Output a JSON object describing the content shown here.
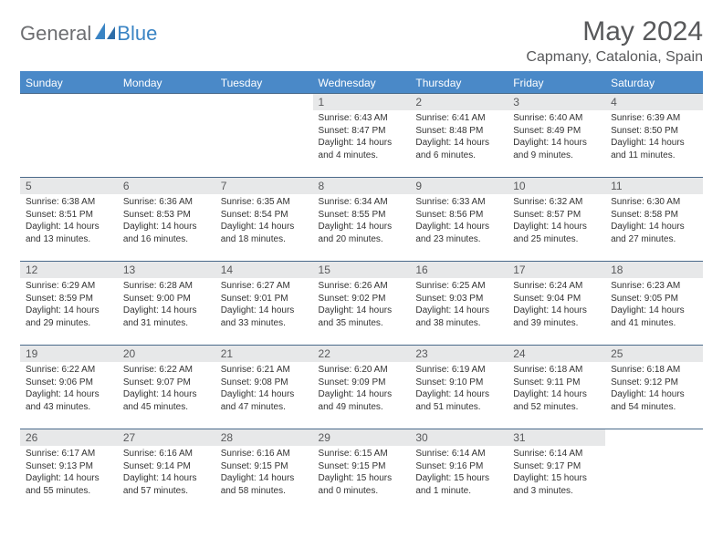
{
  "logo": {
    "general": "General",
    "blue": "Blue"
  },
  "title": "May 2024",
  "location": "Capmany, Catalonia, Spain",
  "colors": {
    "header_bg": "#4a89c8",
    "header_text": "#ffffff",
    "daynum_bg": "#e7e8e9",
    "text_gray": "#58595b",
    "logo_gray": "#6d6e71",
    "logo_blue": "#3a84c4",
    "row_border": "#4a6a8a"
  },
  "weekdays": [
    "Sunday",
    "Monday",
    "Tuesday",
    "Wednesday",
    "Thursday",
    "Friday",
    "Saturday"
  ],
  "weeks": [
    [
      {
        "n": "",
        "sr": "",
        "ss": "",
        "dl": ""
      },
      {
        "n": "",
        "sr": "",
        "ss": "",
        "dl": ""
      },
      {
        "n": "",
        "sr": "",
        "ss": "",
        "dl": ""
      },
      {
        "n": "1",
        "sr": "Sunrise: 6:43 AM",
        "ss": "Sunset: 8:47 PM",
        "dl": "Daylight: 14 hours and 4 minutes."
      },
      {
        "n": "2",
        "sr": "Sunrise: 6:41 AM",
        "ss": "Sunset: 8:48 PM",
        "dl": "Daylight: 14 hours and 6 minutes."
      },
      {
        "n": "3",
        "sr": "Sunrise: 6:40 AM",
        "ss": "Sunset: 8:49 PM",
        "dl": "Daylight: 14 hours and 9 minutes."
      },
      {
        "n": "4",
        "sr": "Sunrise: 6:39 AM",
        "ss": "Sunset: 8:50 PM",
        "dl": "Daylight: 14 hours and 11 minutes."
      }
    ],
    [
      {
        "n": "5",
        "sr": "Sunrise: 6:38 AM",
        "ss": "Sunset: 8:51 PM",
        "dl": "Daylight: 14 hours and 13 minutes."
      },
      {
        "n": "6",
        "sr": "Sunrise: 6:36 AM",
        "ss": "Sunset: 8:53 PM",
        "dl": "Daylight: 14 hours and 16 minutes."
      },
      {
        "n": "7",
        "sr": "Sunrise: 6:35 AM",
        "ss": "Sunset: 8:54 PM",
        "dl": "Daylight: 14 hours and 18 minutes."
      },
      {
        "n": "8",
        "sr": "Sunrise: 6:34 AM",
        "ss": "Sunset: 8:55 PM",
        "dl": "Daylight: 14 hours and 20 minutes."
      },
      {
        "n": "9",
        "sr": "Sunrise: 6:33 AM",
        "ss": "Sunset: 8:56 PM",
        "dl": "Daylight: 14 hours and 23 minutes."
      },
      {
        "n": "10",
        "sr": "Sunrise: 6:32 AM",
        "ss": "Sunset: 8:57 PM",
        "dl": "Daylight: 14 hours and 25 minutes."
      },
      {
        "n": "11",
        "sr": "Sunrise: 6:30 AM",
        "ss": "Sunset: 8:58 PM",
        "dl": "Daylight: 14 hours and 27 minutes."
      }
    ],
    [
      {
        "n": "12",
        "sr": "Sunrise: 6:29 AM",
        "ss": "Sunset: 8:59 PM",
        "dl": "Daylight: 14 hours and 29 minutes."
      },
      {
        "n": "13",
        "sr": "Sunrise: 6:28 AM",
        "ss": "Sunset: 9:00 PM",
        "dl": "Daylight: 14 hours and 31 minutes."
      },
      {
        "n": "14",
        "sr": "Sunrise: 6:27 AM",
        "ss": "Sunset: 9:01 PM",
        "dl": "Daylight: 14 hours and 33 minutes."
      },
      {
        "n": "15",
        "sr": "Sunrise: 6:26 AM",
        "ss": "Sunset: 9:02 PM",
        "dl": "Daylight: 14 hours and 35 minutes."
      },
      {
        "n": "16",
        "sr": "Sunrise: 6:25 AM",
        "ss": "Sunset: 9:03 PM",
        "dl": "Daylight: 14 hours and 38 minutes."
      },
      {
        "n": "17",
        "sr": "Sunrise: 6:24 AM",
        "ss": "Sunset: 9:04 PM",
        "dl": "Daylight: 14 hours and 39 minutes."
      },
      {
        "n": "18",
        "sr": "Sunrise: 6:23 AM",
        "ss": "Sunset: 9:05 PM",
        "dl": "Daylight: 14 hours and 41 minutes."
      }
    ],
    [
      {
        "n": "19",
        "sr": "Sunrise: 6:22 AM",
        "ss": "Sunset: 9:06 PM",
        "dl": "Daylight: 14 hours and 43 minutes."
      },
      {
        "n": "20",
        "sr": "Sunrise: 6:22 AM",
        "ss": "Sunset: 9:07 PM",
        "dl": "Daylight: 14 hours and 45 minutes."
      },
      {
        "n": "21",
        "sr": "Sunrise: 6:21 AM",
        "ss": "Sunset: 9:08 PM",
        "dl": "Daylight: 14 hours and 47 minutes."
      },
      {
        "n": "22",
        "sr": "Sunrise: 6:20 AM",
        "ss": "Sunset: 9:09 PM",
        "dl": "Daylight: 14 hours and 49 minutes."
      },
      {
        "n": "23",
        "sr": "Sunrise: 6:19 AM",
        "ss": "Sunset: 9:10 PM",
        "dl": "Daylight: 14 hours and 51 minutes."
      },
      {
        "n": "24",
        "sr": "Sunrise: 6:18 AM",
        "ss": "Sunset: 9:11 PM",
        "dl": "Daylight: 14 hours and 52 minutes."
      },
      {
        "n": "25",
        "sr": "Sunrise: 6:18 AM",
        "ss": "Sunset: 9:12 PM",
        "dl": "Daylight: 14 hours and 54 minutes."
      }
    ],
    [
      {
        "n": "26",
        "sr": "Sunrise: 6:17 AM",
        "ss": "Sunset: 9:13 PM",
        "dl": "Daylight: 14 hours and 55 minutes."
      },
      {
        "n": "27",
        "sr": "Sunrise: 6:16 AM",
        "ss": "Sunset: 9:14 PM",
        "dl": "Daylight: 14 hours and 57 minutes."
      },
      {
        "n": "28",
        "sr": "Sunrise: 6:16 AM",
        "ss": "Sunset: 9:15 PM",
        "dl": "Daylight: 14 hours and 58 minutes."
      },
      {
        "n": "29",
        "sr": "Sunrise: 6:15 AM",
        "ss": "Sunset: 9:15 PM",
        "dl": "Daylight: 15 hours and 0 minutes."
      },
      {
        "n": "30",
        "sr": "Sunrise: 6:14 AM",
        "ss": "Sunset: 9:16 PM",
        "dl": "Daylight: 15 hours and 1 minute."
      },
      {
        "n": "31",
        "sr": "Sunrise: 6:14 AM",
        "ss": "Sunset: 9:17 PM",
        "dl": "Daylight: 15 hours and 3 minutes."
      },
      {
        "n": "",
        "sr": "",
        "ss": "",
        "dl": ""
      }
    ]
  ]
}
